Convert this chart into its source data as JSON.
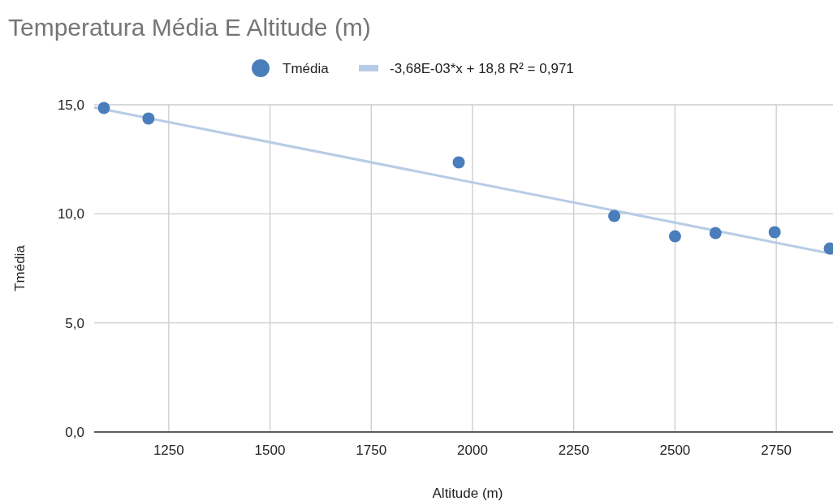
{
  "chart_data": {
    "type": "scatter",
    "title": "Temperatura Média E Altitude (m)",
    "xlabel": "Altitude (m)",
    "ylabel": "Tmédia",
    "xlim": [
      1066,
      2890
    ],
    "xticks": [
      1250,
      1500,
      1750,
      2000,
      2250,
      2500,
      2750
    ],
    "ylim": [
      0,
      15
    ],
    "yticks": [
      {
        "value": 0,
        "label": "0,0"
      },
      {
        "value": 5,
        "label": "5,0"
      },
      {
        "value": 10,
        "label": "10,0"
      },
      {
        "value": 15,
        "label": "15,0"
      }
    ],
    "grid": true,
    "legend": "top",
    "series": [
      {
        "name": "Tmédia",
        "marker": "circle",
        "color": "#4a7ebb",
        "x": [
          1090,
          1200,
          1966,
          2350,
          2500,
          2600,
          2746,
          2882
        ],
        "values": [
          14.85,
          14.37,
          12.36,
          9.9,
          8.97,
          9.12,
          9.16,
          8.41
        ]
      },
      {
        "name": "-3,68E-03*x + 18,8 R² = 0,971",
        "type": "line",
        "marker": "none",
        "color": "#b7cce6",
        "x": [
          1066,
          2890
        ],
        "values": [
          14.88,
          8.16
        ]
      }
    ]
  }
}
